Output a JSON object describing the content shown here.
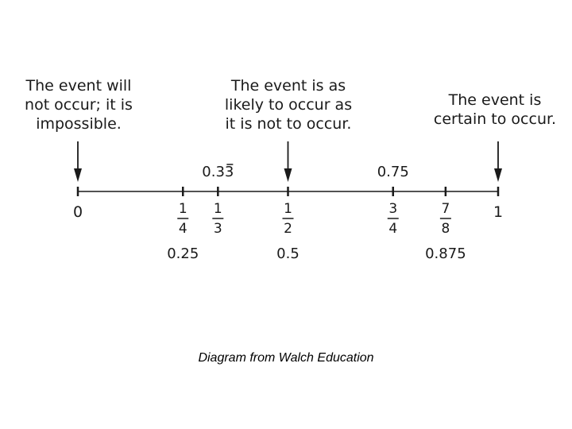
{
  "captions": {
    "impossible": [
      "The event will",
      "not occur; it is",
      "impossible."
    ],
    "even": [
      "The event is as",
      "likely to occur as",
      "it is not to occur."
    ],
    "certain": [
      "The event is",
      "certain to occur."
    ]
  },
  "number_line": {
    "ticks": [
      {
        "value": 0,
        "label": "0"
      },
      {
        "value": 0.25,
        "num": "1",
        "den": "4",
        "decimal": "0.25"
      },
      {
        "value": 0.3333,
        "num": "1",
        "den": "3",
        "decimal": "0.33",
        "repeat_digit": "3",
        "decimal_above": true
      },
      {
        "value": 0.5,
        "num": "1",
        "den": "2",
        "decimal": "0.5"
      },
      {
        "value": 0.75,
        "num": "3",
        "den": "4",
        "decimal": "0.75",
        "decimal_above": true
      },
      {
        "value": 0.875,
        "num": "7",
        "den": "8",
        "decimal": "0.875"
      },
      {
        "value": 1,
        "label": "1"
      }
    ],
    "arrows": [
      0,
      0.5,
      1
    ]
  },
  "credit": "Diagram from Walch Education",
  "colors": {
    "ink": "#1a1a1a"
  }
}
